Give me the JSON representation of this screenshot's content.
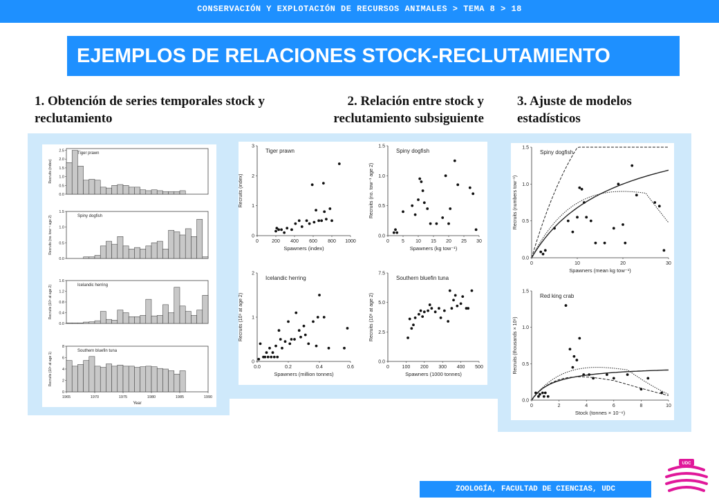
{
  "header": {
    "breadcrumb": "CONSERVACIÓN Y EXPLOTACIÓN DE RECURSOS ANIMALES > TEMA 8 > 18"
  },
  "title": "EJEMPLOS DE RELACIONES STOCK-RECLUTAMIENTO",
  "columns": [
    {
      "heading": "1. Obtención de series temporales stock y reclutamiento"
    },
    {
      "heading": "2. Relación entre stock y reclutamiento subsiguiente"
    },
    {
      "heading": "3. Ajuste de modelos estadísticos"
    }
  ],
  "footer": {
    "text": "ZOOLOGÍA, FACULTAD DE CIENCIAS, UDC"
  },
  "logo": {
    "text": "UDC"
  },
  "colors": {
    "accent": "#1e90ff",
    "panel": "#cfe9fb",
    "logo_magenta": "#e0189a"
  },
  "chart_data": [
    {
      "type": "bar",
      "title": "Tiger prawn",
      "ylabel": "Recruits (index)",
      "ylim": [
        0,
        2.6
      ],
      "yticks": [
        "0.0",
        "0.5",
        "1.0",
        "1.5",
        "2.0",
        "2.5"
      ],
      "x": [
        1965,
        1966,
        1967,
        1968,
        1969,
        1970,
        1971,
        1972,
        1973,
        1974,
        1975,
        1976,
        1977,
        1978,
        1979,
        1980,
        1981,
        1982,
        1983,
        1984,
        1985
      ],
      "values": [
        1.8,
        2.5,
        1.6,
        0.8,
        0.85,
        0.8,
        0.4,
        0.35,
        0.5,
        0.55,
        0.5,
        0.4,
        0.4,
        0.25,
        0.2,
        0.25,
        0.2,
        0.15,
        0.15,
        0.15,
        0.2
      ]
    },
    {
      "type": "bar",
      "title": "Spiny dogfish",
      "ylabel": "Recruits (no. tow⁻¹ age 2)",
      "ylim": [
        0,
        1.5
      ],
      "yticks": [
        "0.0",
        "0.5",
        "1.0",
        "1.5"
      ],
      "x": [
        1968,
        1969,
        1970,
        1971,
        1972,
        1973,
        1974,
        1975,
        1976,
        1977,
        1978,
        1979,
        1980,
        1981,
        1982,
        1983,
        1984,
        1985,
        1986,
        1987,
        1988,
        1989
      ],
      "values": [
        0.05,
        0.05,
        0.1,
        0.4,
        0.55,
        0.45,
        0.7,
        0.4,
        0.3,
        0.35,
        0.3,
        0.4,
        0.5,
        0.55,
        0.3,
        0.9,
        0.85,
        0.75,
        0.95,
        0.7,
        1.25,
        0.05
      ]
    },
    {
      "type": "bar",
      "title": "Icelandic herring",
      "ylabel": "Recruits (10⁹ at age 2)",
      "ylim": [
        0,
        1.6
      ],
      "yticks": [
        "0.0",
        "0.4",
        "0.8",
        "1.2",
        "1.6"
      ],
      "x": [
        1965,
        1966,
        1967,
        1968,
        1969,
        1970,
        1971,
        1972,
        1973,
        1974,
        1975,
        1976,
        1977,
        1978,
        1979,
        1980,
        1981,
        1982,
        1983,
        1984,
        1985,
        1986,
        1987,
        1988,
        1989
      ],
      "values": [
        0.02,
        0.02,
        0.02,
        0.05,
        0.06,
        0.1,
        0.45,
        0.15,
        0.12,
        0.5,
        0.4,
        0.25,
        0.25,
        0.3,
        0.9,
        0.28,
        0.3,
        0.7,
        0.4,
        1.35,
        0.65,
        0.45,
        0.3,
        0.5,
        1.05
      ]
    },
    {
      "type": "bar",
      "title": "Southern bluefin tuna",
      "ylabel": "Recruits (10⁶ at age 1)",
      "ylim": [
        0,
        8
      ],
      "yticks": [
        "0",
        "2",
        "4",
        "6",
        "8"
      ],
      "xlabel": "Year",
      "xticks": [
        "1965",
        "1970",
        "1975",
        "1980",
        "1985",
        "1990"
      ],
      "x": [
        1965,
        1966,
        1967,
        1968,
        1969,
        1970,
        1971,
        1972,
        1973,
        1974,
        1975,
        1976,
        1977,
        1978,
        1979,
        1980,
        1981,
        1982,
        1983,
        1984,
        1985
      ],
      "values": [
        5.5,
        4.5,
        4.8,
        5.5,
        6.2,
        4.5,
        4.3,
        4.9,
        4.5,
        4.7,
        4.5,
        4.5,
        4.3,
        4.4,
        4.5,
        4.4,
        4.1,
        4.0,
        3.7,
        3.1,
        3.7
      ]
    },
    {
      "type": "scatter",
      "title": "Tiger prawn",
      "xlabel": "Spawners (index)",
      "ylabel": "Recruits (index)",
      "xlim": [
        0,
        1000
      ],
      "ylim": [
        0,
        3
      ],
      "xticks": [
        "0",
        "200",
        "400",
        "600",
        "800",
        "1000"
      ],
      "yticks": [
        "0",
        "1",
        "2",
        "3"
      ],
      "points": [
        [
          200,
          0.15
        ],
        [
          210,
          0.25
        ],
        [
          230,
          0.2
        ],
        [
          260,
          0.2
        ],
        [
          290,
          0.1
        ],
        [
          320,
          0.25
        ],
        [
          370,
          0.2
        ],
        [
          410,
          0.4
        ],
        [
          450,
          0.5
        ],
        [
          480,
          0.3
        ],
        [
          530,
          0.5
        ],
        [
          560,
          0.4
        ],
        [
          590,
          1.7
        ],
        [
          610,
          0.45
        ],
        [
          630,
          0.85
        ],
        [
          660,
          0.5
        ],
        [
          690,
          0.5
        ],
        [
          710,
          1.75
        ],
        [
          720,
          0.8
        ],
        [
          740,
          0.55
        ],
        [
          780,
          0.9
        ],
        [
          800,
          0.5
        ],
        [
          880,
          2.4
        ]
      ]
    },
    {
      "type": "scatter",
      "title": "Spiny dogfish",
      "xlabel": "Spawners (kg tow⁻¹)",
      "ylabel": "Recruits (no. tow⁻¹ age 2)",
      "xlim": [
        0,
        30
      ],
      "ylim": [
        0,
        1.5
      ],
      "xticks": [
        "0",
        "5",
        "10",
        "15",
        "20",
        "25",
        "30"
      ],
      "yticks": [
        "0.0",
        "0.5",
        "1.0",
        "1.5"
      ],
      "points": [
        [
          2,
          0.05
        ],
        [
          2.5,
          0.1
        ],
        [
          3,
          0.05
        ],
        [
          5,
          0.4
        ],
        [
          8,
          0.5
        ],
        [
          9,
          0.35
        ],
        [
          10,
          0.6
        ],
        [
          10.5,
          0.95
        ],
        [
          11,
          0.9
        ],
        [
          11.5,
          0.75
        ],
        [
          12,
          0.55
        ],
        [
          13,
          0.45
        ],
        [
          14,
          0.2
        ],
        [
          16,
          0.2
        ],
        [
          18,
          0.3
        ],
        [
          19,
          1.0
        ],
        [
          20,
          0.2
        ],
        [
          20.5,
          0.45
        ],
        [
          22,
          1.25
        ],
        [
          23,
          0.85
        ],
        [
          27,
          0.8
        ],
        [
          28,
          0.7
        ],
        [
          29,
          0.1
        ]
      ]
    },
    {
      "type": "scatter",
      "title": "Icelandic herring",
      "xlabel": "Spawners (million tonnes)",
      "ylabel": "Recruits (10⁹ at age 2)",
      "xlim": [
        0,
        0.6
      ],
      "ylim": [
        0,
        2
      ],
      "xticks": [
        "0.0",
        "0.2",
        "0.4",
        "0.6"
      ],
      "yticks": [
        "0",
        "1",
        "2"
      ],
      "points": [
        [
          0.01,
          0.05
        ],
        [
          0.02,
          0.4
        ],
        [
          0.04,
          0.1
        ],
        [
          0.05,
          0.1
        ],
        [
          0.06,
          0.2
        ],
        [
          0.07,
          0.1
        ],
        [
          0.08,
          0.3
        ],
        [
          0.09,
          0.1
        ],
        [
          0.1,
          0.2
        ],
        [
          0.11,
          0.1
        ],
        [
          0.12,
          0.35
        ],
        [
          0.13,
          0.1
        ],
        [
          0.14,
          0.7
        ],
        [
          0.15,
          0.5
        ],
        [
          0.16,
          0.3
        ],
        [
          0.18,
          0.45
        ],
        [
          0.2,
          0.9
        ],
        [
          0.21,
          0.4
        ],
        [
          0.22,
          0.5
        ],
        [
          0.24,
          0.5
        ],
        [
          0.25,
          1.1
        ],
        [
          0.27,
          0.7
        ],
        [
          0.28,
          0.55
        ],
        [
          0.3,
          0.8
        ],
        [
          0.31,
          0.6
        ],
        [
          0.33,
          0.4
        ],
        [
          0.36,
          0.9
        ],
        [
          0.38,
          0.35
        ],
        [
          0.39,
          1.0
        ],
        [
          0.4,
          1.5
        ],
        [
          0.43,
          1.0
        ],
        [
          0.46,
          0.3
        ],
        [
          0.56,
          0.3
        ],
        [
          0.58,
          0.75
        ]
      ]
    },
    {
      "type": "scatter",
      "title": "Southern bluefin tuna",
      "xlabel": "Spawners (1000 tonnes)",
      "ylabel": "Recruits (10⁶ at age 2)",
      "xlim": [
        0,
        500
      ],
      "ylim": [
        0,
        7.5
      ],
      "xticks": [
        "0",
        "100",
        "200",
        "300",
        "400",
        "500"
      ],
      "yticks": [
        "0.0",
        "2.5",
        "5.0",
        "7.5"
      ],
      "points": [
        [
          110,
          2.0
        ],
        [
          120,
          3.6
        ],
        [
          130,
          2.8
        ],
        [
          140,
          3.1
        ],
        [
          150,
          3.7
        ],
        [
          170,
          4.0
        ],
        [
          180,
          4.3
        ],
        [
          190,
          3.8
        ],
        [
          200,
          4.2
        ],
        [
          220,
          4.3
        ],
        [
          230,
          4.8
        ],
        [
          240,
          4.5
        ],
        [
          260,
          4.2
        ],
        [
          280,
          4.5
        ],
        [
          290,
          3.7
        ],
        [
          310,
          4.3
        ],
        [
          330,
          3.4
        ],
        [
          340,
          6.0
        ],
        [
          350,
          4.5
        ],
        [
          360,
          5.2
        ],
        [
          370,
          5.6
        ],
        [
          380,
          4.7
        ],
        [
          400,
          4.9
        ],
        [
          410,
          5.5
        ],
        [
          430,
          4.5
        ],
        [
          440,
          4.5
        ],
        [
          460,
          6.0
        ]
      ]
    },
    {
      "type": "scatter",
      "title": "Spiny dogfish",
      "xlabel": "Spawners (mean kg tow⁻¹)",
      "ylabel": "Recruits (numbers tow⁻¹)",
      "xlim": [
        0,
        30
      ],
      "ylim": [
        0,
        1.5
      ],
      "xticks": [
        "0",
        "10",
        "20",
        "30"
      ],
      "yticks": [
        "0.0",
        "0.5",
        "1.0",
        "1.5"
      ],
      "points": [
        [
          2,
          0.08
        ],
        [
          2.5,
          0.05
        ],
        [
          3,
          0.1
        ],
        [
          5,
          0.4
        ],
        [
          8,
          0.5
        ],
        [
          9,
          0.35
        ],
        [
          10,
          0.55
        ],
        [
          10.5,
          0.95
        ],
        [
          11,
          0.93
        ],
        [
          11.5,
          0.75
        ],
        [
          12,
          0.55
        ],
        [
          13,
          0.5
        ],
        [
          14,
          0.2
        ],
        [
          16,
          0.2
        ],
        [
          18,
          0.4
        ],
        [
          19,
          1.0
        ],
        [
          20,
          0.45
        ],
        [
          20.5,
          0.2
        ],
        [
          22,
          1.25
        ],
        [
          23,
          0.85
        ],
        [
          27,
          0.75
        ],
        [
          28,
          0.7
        ],
        [
          29,
          0.1
        ]
      ]
    },
    {
      "type": "scatter",
      "title": "Red king crab",
      "xlabel": "Stock (tonnes × 10⁻⁶)",
      "ylabel": "Recruits (thousands × 10⁶)",
      "xlim": [
        0,
        10
      ],
      "ylim": [
        0,
        1.5
      ],
      "xticks": [
        "0",
        "2",
        "4",
        "6",
        "8",
        "10"
      ],
      "yticks": [
        "0.0",
        "0.5",
        "1.0",
        "1.5"
      ],
      "points": [
        [
          0.3,
          0.1
        ],
        [
          0.5,
          0.05
        ],
        [
          0.6,
          0.08
        ],
        [
          0.8,
          0.1
        ],
        [
          0.9,
          0.05
        ],
        [
          1.0,
          0.1
        ],
        [
          1.2,
          0.05
        ],
        [
          2.5,
          1.3
        ],
        [
          2.8,
          0.7
        ],
        [
          3.0,
          0.45
        ],
        [
          3.1,
          0.6
        ],
        [
          3.3,
          0.55
        ],
        [
          3.5,
          0.85
        ],
        [
          3.8,
          0.35
        ],
        [
          4.2,
          0.35
        ],
        [
          4.5,
          0.3
        ],
        [
          5.5,
          0.35
        ],
        [
          6.0,
          0.3
        ],
        [
          7.0,
          0.35
        ],
        [
          8.0,
          0.15
        ],
        [
          8.5,
          0.3
        ],
        [
          9.5,
          0.1
        ]
      ]
    }
  ]
}
